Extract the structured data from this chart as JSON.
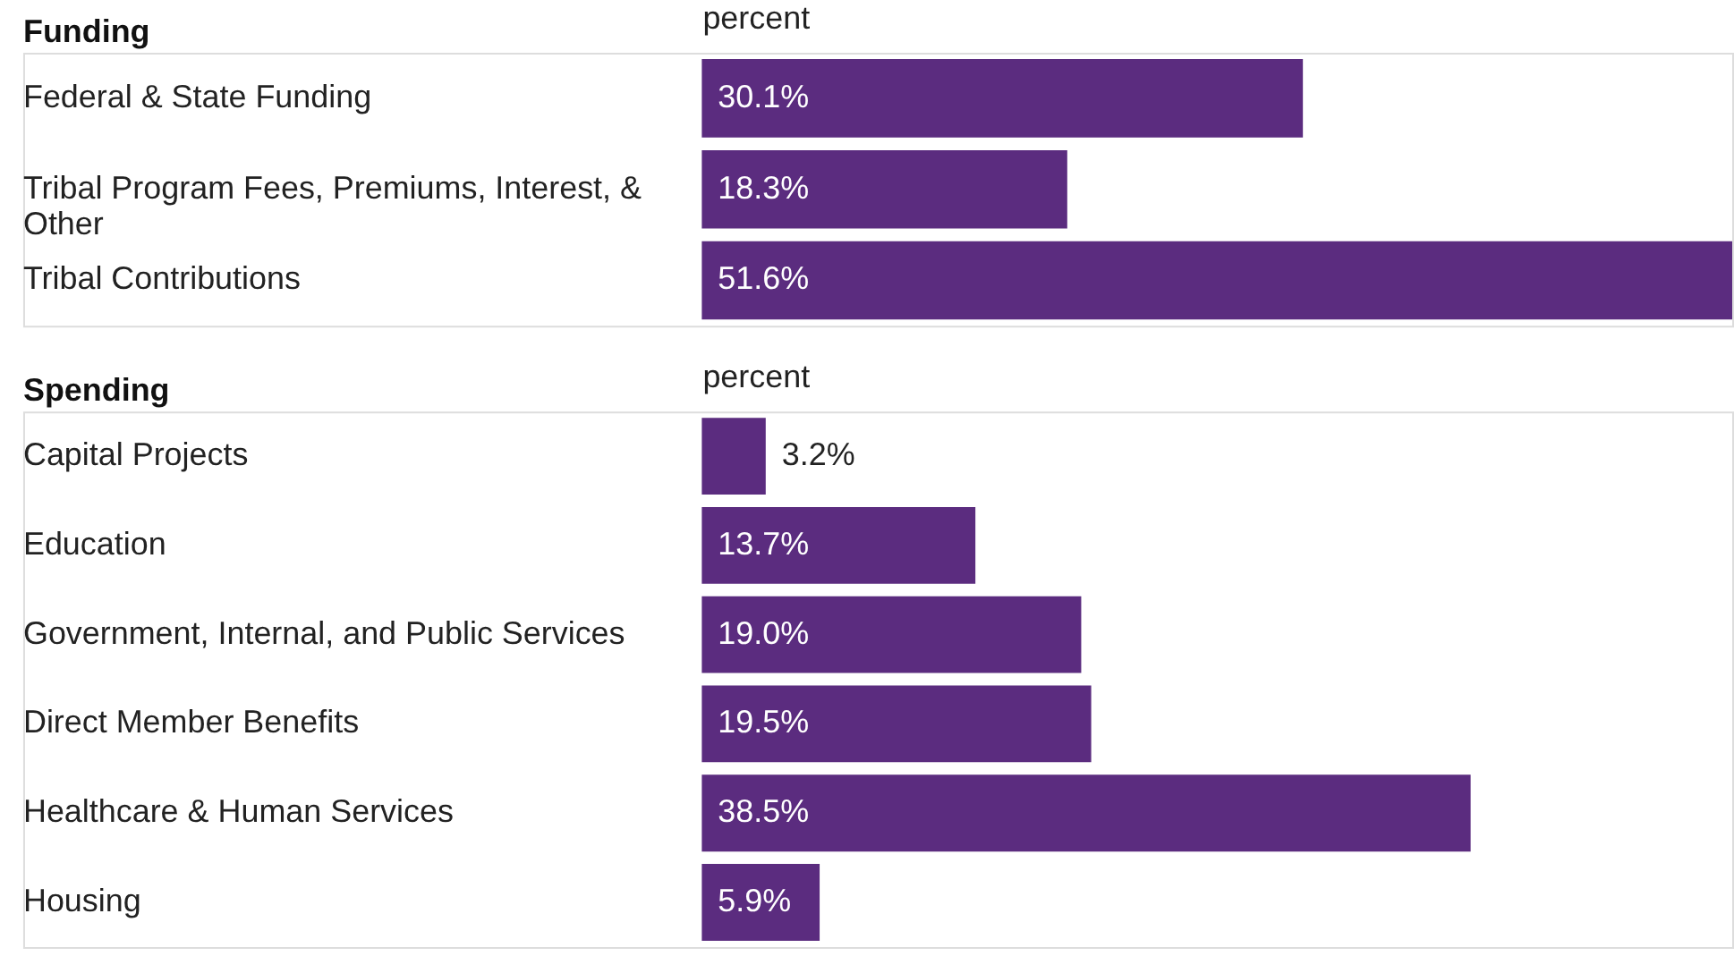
{
  "chart_data": [
    {
      "type": "bar",
      "orientation": "horizontal",
      "title": "Funding",
      "xlabel": "percent",
      "tick_labels": "y",
      "categories": [
        "Federal & State Funding",
        "Tribal Program Fees, Premiums, Interest, & Other",
        "Tribal Contributions"
      ],
      "values": [
        30.1,
        18.3,
        51.6
      ],
      "color": "#5b2c7f",
      "value_labels": [
        "30.1%",
        "18.3%",
        "51.6%"
      ]
    },
    {
      "type": "bar",
      "orientation": "horizontal",
      "title": "Spending",
      "xlabel": "percent",
      "tick_labels": "y",
      "categories": [
        "Capital Projects",
        "Education",
        "Government, Internal, and Public Services",
        "Direct Member Benefits",
        "Healthcare & Human Services",
        "Housing"
      ],
      "values": [
        3.2,
        13.7,
        19.0,
        19.5,
        38.5,
        5.9
      ],
      "color": "#5b2c7f",
      "value_labels": [
        "3.2%",
        "13.7%",
        "19.0%",
        "19.5%",
        "38.5%",
        "5.9%"
      ]
    }
  ]
}
